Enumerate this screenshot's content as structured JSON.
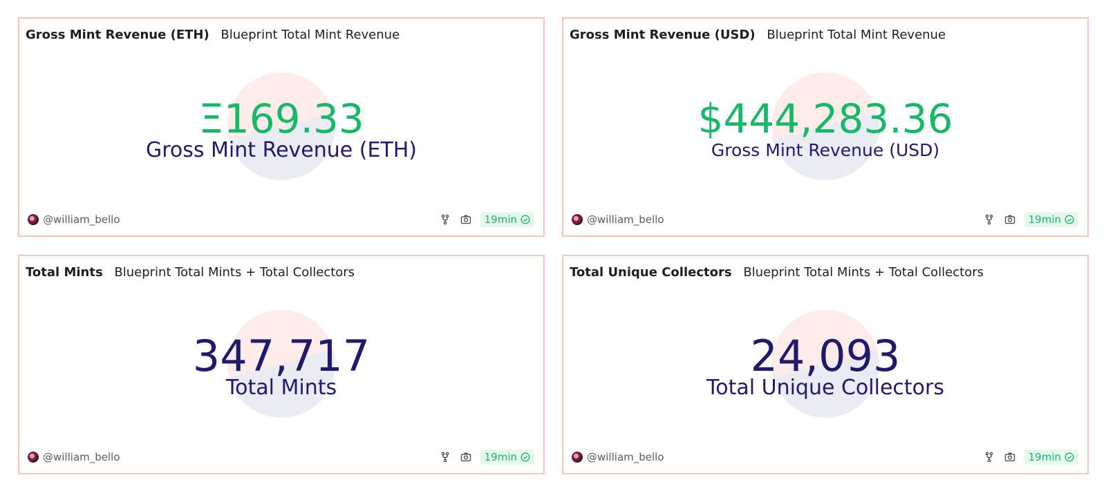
{
  "cards": [
    {
      "title": "Gross Mint Revenue (ETH)",
      "subtitle": "Blueprint Total Mint Revenue",
      "value": "Ξ169.33",
      "label": "Gross Mint Revenue (ETH)",
      "value_color": "#17b968",
      "author": "@william_bello",
      "refresh": "19min"
    },
    {
      "title": "Gross Mint Revenue (USD)",
      "subtitle": "Blueprint Total Mint Revenue",
      "value": "$444,283.36",
      "label": "Gross Mint Revenue (USD)",
      "value_color": "#17b968",
      "author": "@william_bello",
      "refresh": "19min"
    },
    {
      "title": "Total Mints",
      "subtitle": "Blueprint Total Mints + Total Collectors",
      "value": "347,717",
      "label": "Total Mints",
      "value_color": "#1f1a6b",
      "author": "@william_bello",
      "refresh": "19min"
    },
    {
      "title": "Total Unique Collectors",
      "subtitle": "Blueprint Total Mints + Total Collectors",
      "value": "24,093",
      "label": "Total Unique Collectors",
      "value_color": "#1f1a6b",
      "author": "@william_bello",
      "refresh": "19min"
    }
  ],
  "colors": {
    "card_border": "#f8c4b4",
    "accent_green": "#17b968",
    "navy": "#1f1a6b",
    "badge_bg": "#e6f7ec"
  },
  "icons": {
    "fork": "fork-icon",
    "camera": "camera-icon",
    "check": "check-circle-icon"
  }
}
